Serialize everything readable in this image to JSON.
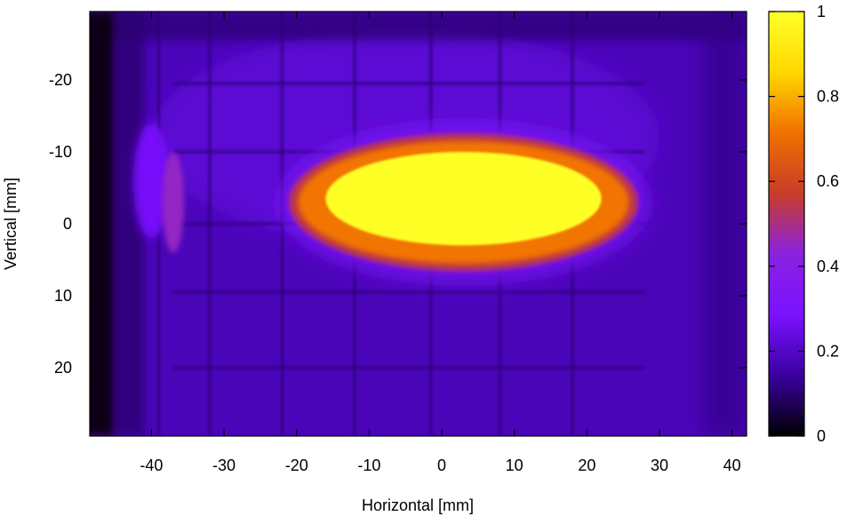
{
  "chart_data": {
    "type": "heatmap",
    "xlabel": "Horizontal [mm]",
    "ylabel": "Vertical [mm]",
    "xlim": [
      -48.5,
      42.0
    ],
    "ylim": [
      -29.5,
      29.5
    ],
    "y_inverted": true,
    "x_ticks": [
      "-40",
      "-30",
      "-20",
      "-10",
      "0",
      "10",
      "20",
      "30",
      "40"
    ],
    "y_ticks": [
      "-20",
      "-10",
      "0",
      "10",
      "20"
    ],
    "colorbar": {
      "range": [
        0,
        1
      ],
      "ticks": [
        "0",
        "0.2",
        "0.4",
        "0.6",
        "0.8",
        "1"
      ],
      "colormap": [
        "#000000",
        "#3a00a0",
        "#7a12ff",
        "#8a22e0",
        "#c83c28",
        "#f07000",
        "#ffd800",
        "#ffff28"
      ]
    },
    "regions": [
      {
        "name": "background",
        "value": 0.18
      },
      {
        "name": "left-edge-dark-band",
        "x": [
          -48.5,
          -45
        ],
        "y": [
          -29.5,
          29.5
        ],
        "value": 0.02
      },
      {
        "name": "central-hot-spot",
        "center": [
          3,
          -3.5
        ],
        "half_width": [
          19,
          6.5
        ],
        "value": 1.0
      },
      {
        "name": "hot-spot-halo",
        "center": [
          3,
          -3
        ],
        "half_width": [
          24,
          9.5
        ],
        "value": 0.55
      },
      {
        "name": "left-side-feature",
        "center": [
          -37,
          -3
        ],
        "half_width": [
          1.5,
          7
        ],
        "value": 0.45
      },
      {
        "name": "left-side-glow",
        "center": [
          -40,
          -6
        ],
        "half_width": [
          2.5,
          8
        ],
        "value": 0.28
      }
    ],
    "grid_pattern": {
      "vertical_lines_x": [
        -39,
        -32,
        -22,
        -12,
        -1.5,
        8,
        18
      ],
      "horizontal_lines_y": [
        -19.5,
        -10,
        0,
        9.5,
        20
      ]
    }
  }
}
